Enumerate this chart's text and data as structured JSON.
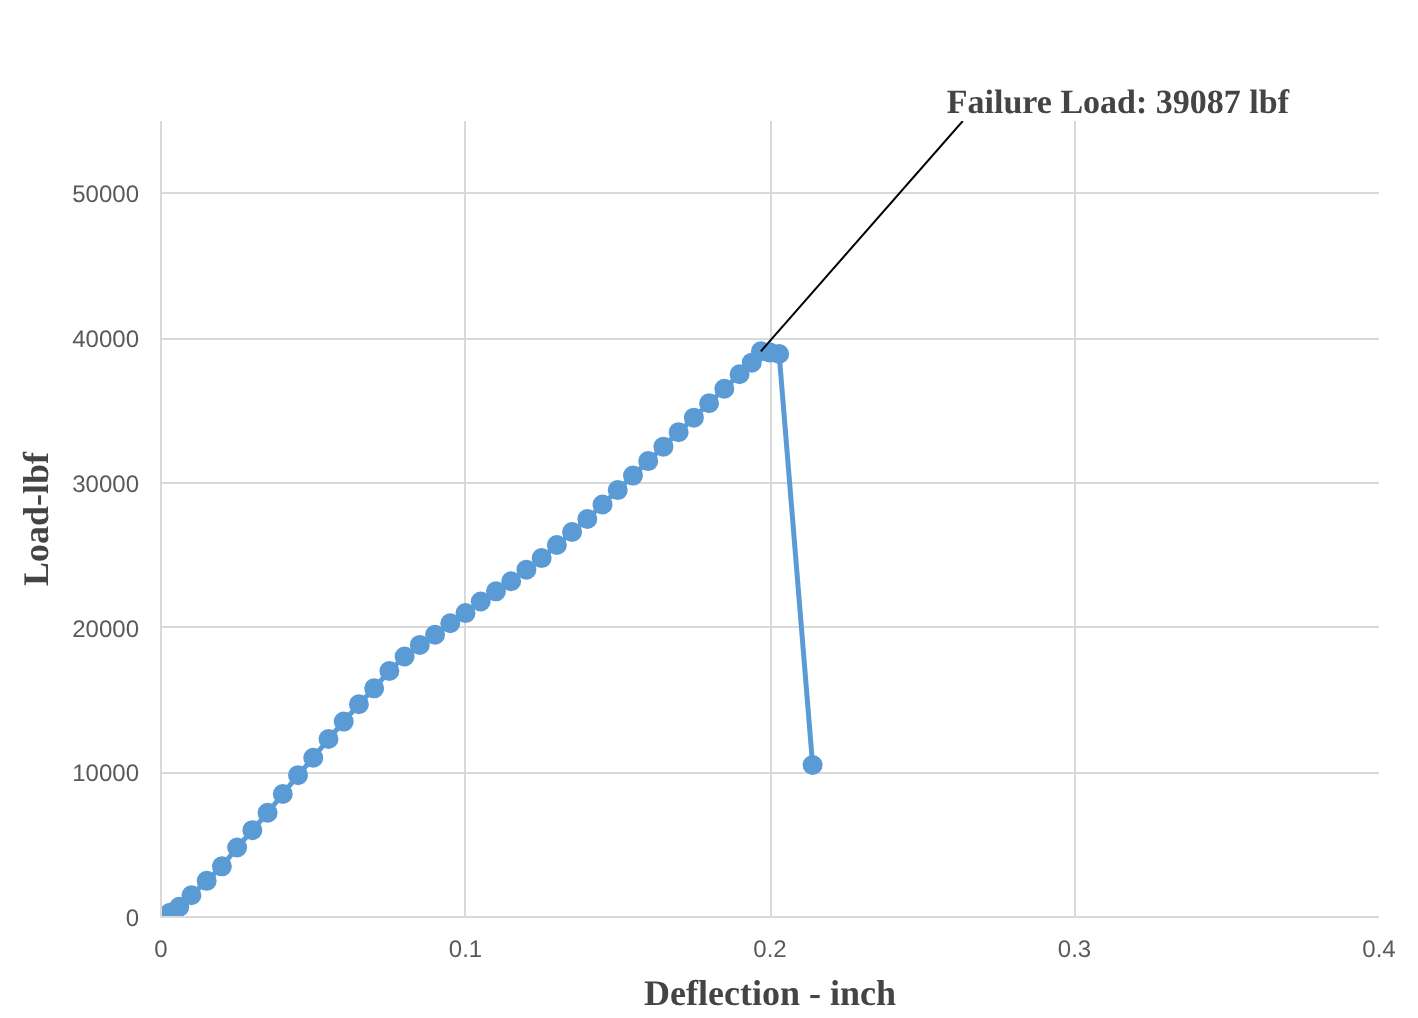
{
  "chart_data": {
    "type": "line",
    "xlabel": "Deflection - inch",
    "ylabel": "Load-lbf",
    "xlim": [
      0,
      0.4
    ],
    "xticks": [
      0,
      0.1,
      0.2,
      0.3,
      0.4
    ],
    "ylim": [
      0,
      55000
    ],
    "yticks": [
      0,
      10000,
      20000,
      30000,
      40000,
      50000
    ],
    "grid": true,
    "marker": "circle",
    "line_style": "solid",
    "series": [
      {
        "color": "#5b9bd5",
        "x": [
          0,
          0.003,
          0.006,
          0.01,
          0.015,
          0.02,
          0.025,
          0.03,
          0.035,
          0.04,
          0.045,
          0.05,
          0.055,
          0.06,
          0.065,
          0.07,
          0.075,
          0.08,
          0.085,
          0.09,
          0.095,
          0.1,
          0.105,
          0.11,
          0.115,
          0.12,
          0.125,
          0.13,
          0.135,
          0.14,
          0.145,
          0.15,
          0.155,
          0.16,
          0.165,
          0.17,
          0.175,
          0.18,
          0.185,
          0.19,
          0.194,
          0.197,
          0.2,
          0.203,
          0.214
        ],
        "values": [
          0,
          300,
          700,
          1500,
          2500,
          3500,
          4800,
          6000,
          7200,
          8500,
          9800,
          11000,
          12300,
          13500,
          14700,
          15800,
          17000,
          18000,
          18800,
          19500,
          20300,
          21000,
          21800,
          22500,
          23200,
          24000,
          24800,
          25700,
          26600,
          27500,
          28500,
          29500,
          30500,
          31500,
          32500,
          33500,
          34500,
          35500,
          36500,
          37500,
          38300,
          39087,
          39000,
          38900,
          10500
        ]
      }
    ],
    "annotations": [
      {
        "text": "Failure Load: 39087 lbf",
        "x": 0.197,
        "y": 39087
      }
    ]
  }
}
